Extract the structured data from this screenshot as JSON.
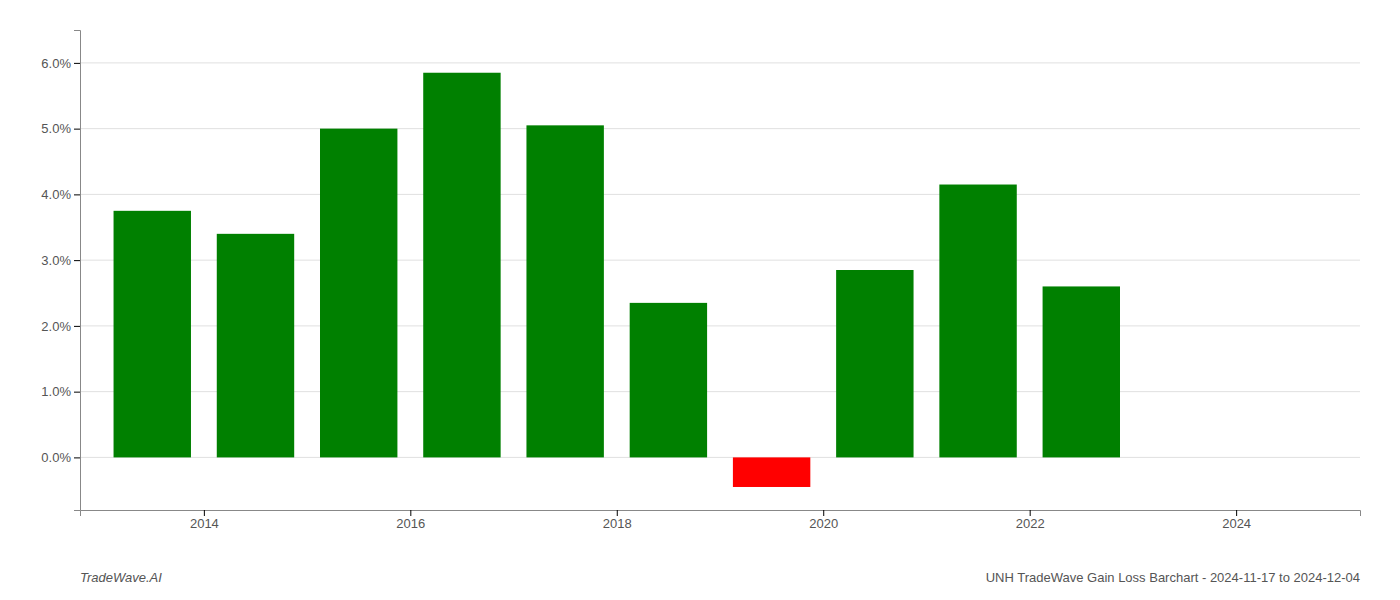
{
  "chart_data": {
    "type": "bar",
    "title": "UNH TradeWave Gain Loss Barchart - 2024-11-17 to 2024-12-04",
    "annotations": [
      "TradeWave.AI"
    ],
    "x": [
      2013.5,
      2014.5,
      2015.5,
      2016.5,
      2017.5,
      2018.5,
      2019.5,
      2020.5,
      2021.5,
      2022.5
    ],
    "values": [
      0.0375,
      0.034,
      0.05,
      0.0585,
      0.0505,
      0.0235,
      -0.0045,
      0.0285,
      0.0415,
      0.026
    ],
    "colors": [
      "#008000",
      "#008000",
      "#008000",
      "#008000",
      "#008000",
      "#008000",
      "#ff0000",
      "#008000",
      "#008000",
      "#008000"
    ],
    "xlim": [
      2012.8,
      2025.2
    ],
    "xticks": [
      2014,
      2016,
      2018,
      2020,
      2022,
      2024
    ],
    "ylim": [
      -0.008,
      0.065
    ],
    "yticks": [
      {
        "value": 0.0,
        "label": "0.0%"
      },
      {
        "value": 0.01,
        "label": "1.0%"
      },
      {
        "value": 0.02,
        "label": "2.0%"
      },
      {
        "value": 0.03,
        "label": "3.0%"
      },
      {
        "value": 0.04,
        "label": "4.0%"
      },
      {
        "value": 0.05,
        "label": "5.0%"
      },
      {
        "value": 0.06,
        "label": "6.0%"
      }
    ],
    "grid": true
  }
}
